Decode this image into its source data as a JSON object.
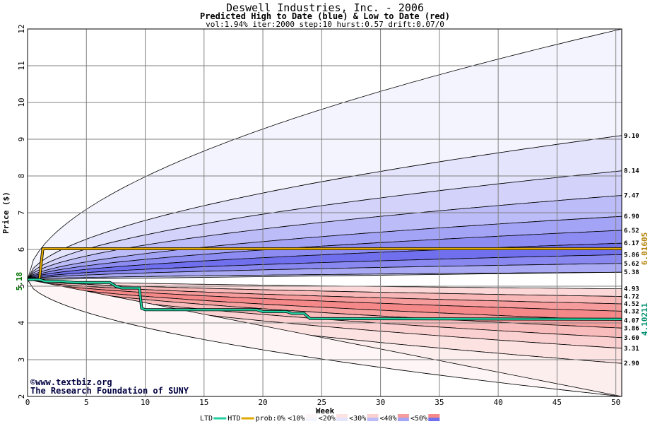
{
  "chart_data": {
    "type": "area",
    "title": "Deswell Industries, Inc. - 2006",
    "subtitle": "Predicted High to Date (blue) &  Low to Date (red)",
    "params": "vol:1.94% iter:2000 step:10 hurst:0.57 drift:0.07/0",
    "xlabel": "Week",
    "ylabel": "Price ($)",
    "xlim": [
      0,
      50.5
    ],
    "ylim": [
      2,
      12
    ],
    "xticks": [
      "0",
      "5",
      "10",
      "15",
      "20",
      "25",
      "30",
      "35",
      "40",
      "45",
      "50"
    ],
    "yticks": [
      "2",
      "3",
      "4",
      "5",
      "6",
      "7",
      "8",
      "9",
      "10",
      "11",
      "12"
    ],
    "grid": true,
    "start_value": 5.18,
    "start_label": "5.18",
    "high_bands": [
      {
        "level": 12.0,
        "color": "#f4f4fe"
      },
      {
        "level": 9.1,
        "label": "9.10",
        "color": "#e4e4fc"
      },
      {
        "level": 8.14,
        "label": "8.14",
        "color": "#d2d2fa"
      },
      {
        "level": 7.47,
        "label": "7.47",
        "color": "#bcbcf8"
      },
      {
        "level": 6.9,
        "label": "6.90",
        "color": "#a4a4f6"
      },
      {
        "level": 6.52,
        "label": "6.52",
        "color": "#8c8cf2"
      },
      {
        "level": 6.17,
        "label": "6.17",
        "color": "#7070ee"
      },
      {
        "level": 5.86,
        "label": "5.86",
        "color": "#8888f0"
      },
      {
        "level": 5.62,
        "label": "5.62",
        "color": "#aaaaf4"
      },
      {
        "level": 5.38,
        "label": "5.38",
        "color": "#d4d4fa"
      }
    ],
    "low_bands": [
      {
        "level": 4.93,
        "label": "4.93",
        "color": "#fcd8d8"
      },
      {
        "level": 4.72,
        "label": "4.72",
        "color": "#f9b8b8"
      },
      {
        "level": 4.52,
        "label": "4.52",
        "color": "#f79c9c"
      },
      {
        "level": 4.32,
        "label": "4.32",
        "color": "#f58888"
      },
      {
        "level": 4.07,
        "label": "4.07",
        "color": "#f7a0a0"
      },
      {
        "level": 3.86,
        "label": "3.86",
        "color": "#f9bcbc"
      },
      {
        "level": 3.6,
        "label": "3.60",
        "color": "#fbd0d0"
      },
      {
        "level": 3.31,
        "label": "3.31",
        "color": "#fde2e2"
      },
      {
        "level": 2.9,
        "label": "2.90",
        "color": "#fdeeee"
      },
      {
        "level": 2.0,
        "color": "#fef6f6"
      }
    ],
    "series": [
      {
        "name": "HTD",
        "color": "#e0a800",
        "x": [
          0,
          1,
          1.3,
          50.5
        ],
        "y": [
          5.18,
          5.18,
          6.02,
          6.02
        ],
        "end_label": "6.01605"
      },
      {
        "name": "LTD",
        "color": "#20d0a0",
        "x": [
          0,
          1,
          1.5,
          3,
          4,
          7,
          7.5,
          8,
          9.5,
          9.7,
          10,
          19.5,
          20,
          22,
          22.5,
          23.5,
          24,
          50.5
        ],
        "y": [
          5.18,
          5.18,
          5.13,
          5.13,
          5.1,
          5.1,
          5.0,
          4.95,
          4.95,
          4.4,
          4.36,
          4.36,
          4.31,
          4.31,
          4.26,
          4.26,
          4.12,
          4.1
        ],
        "end_label": "4.10211"
      }
    ],
    "legend": {
      "placement": "bottom",
      "items": [
        {
          "label": "LTD",
          "color": "#20d0a0",
          "kind": "line"
        },
        {
          "label": "HTD",
          "color": "#e0a800",
          "kind": "line"
        },
        {
          "label": "prob:0%",
          "kind": "text"
        },
        {
          "label": "<10%",
          "color": "#fef6f6",
          "color2": "#f4f4fe",
          "kind": "swatch"
        },
        {
          "label": "<20%",
          "color": "#fde2e2",
          "color2": "#e4e4fc",
          "kind": "swatch"
        },
        {
          "label": "<30%",
          "color": "#fbd0d0",
          "color2": "#bcbcf8",
          "kind": "swatch"
        },
        {
          "label": "<40%",
          "color": "#f79c9c",
          "color2": "#a4a4f6",
          "kind": "swatch"
        },
        {
          "label": "<50%",
          "color": "#f58888",
          "color2": "#7070ee",
          "kind": "swatch"
        }
      ]
    },
    "credits": [
      "©www.textbiz.org",
      "The Research Foundation of SUNY"
    ]
  }
}
